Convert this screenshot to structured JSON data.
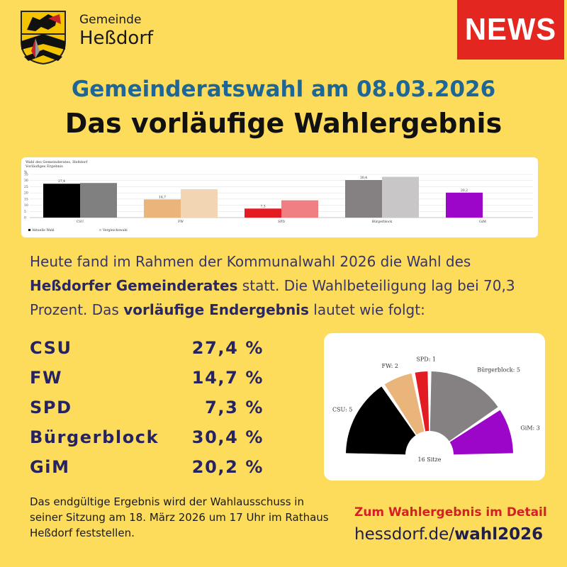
{
  "header": {
    "municipality_label": "Gemeinde",
    "municipality_name": "Heßdorf",
    "badge": "NEWS"
  },
  "headline": {
    "line1": "Gemeinderatswahl am 08.03.2026",
    "line2": "Das vorläufige Wahlergebnis"
  },
  "intro": {
    "part1": "Heute fand im Rahmen der Kommunalwahl 2026 die Wahl des ",
    "bold1": "Heßdorfer Gemeinderates",
    "part2": " statt. Die Wahlbeteiligung lag bei 70,3 Prozent. Das ",
    "bold2": "vorläufige Endergebnis",
    "part3": " lautet wie folgt:"
  },
  "results": [
    {
      "party": "CSU",
      "value": "27,4 %"
    },
    {
      "party": "FW",
      "value": "14,7 %"
    },
    {
      "party": "SPD",
      "value": "7,3 %"
    },
    {
      "party": "Bürgerblock",
      "value": "30,4 %"
    },
    {
      "party": "GiM",
      "value": "20,2 %"
    }
  ],
  "chart_data": [
    {
      "type": "bar",
      "title": "Wahl des Gemeinderates, Heßdorf",
      "subtitle": "Vorläufiges Ergebnis",
      "ylabel": "%",
      "ylim": [
        0,
        35
      ],
      "yticks": [
        "35",
        "30",
        "25",
        "20",
        "15",
        "10",
        "5",
        "0"
      ],
      "categories": [
        "CSU",
        "FW",
        "SPD",
        "Bürgerblock",
        "GiM"
      ],
      "series": [
        {
          "name": "Aktuelle Wahl",
          "values": [
            27.4,
            14.7,
            7.3,
            30.4,
            20.2
          ]
        },
        {
          "name": "Vergleichswahl",
          "values": [
            28.0,
            23.0,
            14.0,
            33.0,
            null
          ]
        }
      ],
      "value_labels": [
        "27,4",
        "14,7",
        "7,3",
        "30,4",
        "20,2"
      ],
      "bar_colors": [
        "#000000",
        "#e9b57b",
        "#e31b23",
        "#858081",
        "#9c06c9"
      ],
      "compare_colors": [
        "#808080",
        "#f2d6b3",
        "#f07f84",
        "#c8c6c6",
        "#cf8fe4"
      ],
      "legend": [
        "Aktuelle Wahl",
        "Vergleichswahl"
      ],
      "legend_position": "bottom-left"
    },
    {
      "type": "pie",
      "subtype": "semicircle-parliament",
      "center_label": "16 Sitze",
      "total": 16,
      "categories": [
        "CSU",
        "FW",
        "SPD",
        "Bürgerblock",
        "GiM"
      ],
      "values": [
        5,
        2,
        1,
        5,
        3
      ],
      "labels": [
        "CSU: 5",
        "FW: 2",
        "SPD: 1",
        "Bürgerblock: 5",
        "GiM: 3"
      ],
      "colors": [
        "#000000",
        "#e9b57b",
        "#e31b23",
        "#858081",
        "#9c06c9"
      ]
    }
  ],
  "footnote": "Das endgültige Ergebnis wird der Wahlausschuss in seiner Sitzung am 18. März 2026 um 17 Uhr im Rathaus Heßdorf feststellen.",
  "link": {
    "label": "Zum Wahlergebnis im Detail",
    "url_prefix": "hessdorf.de/",
    "url_path": "wahl2026"
  }
}
